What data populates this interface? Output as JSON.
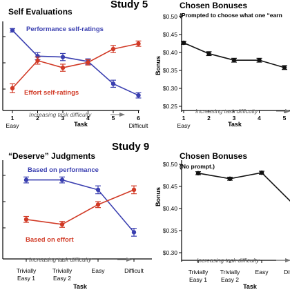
{
  "figure": {
    "study_titles": [
      "Study 5",
      "Study 9"
    ],
    "difficulty_annotation": "Increasing task difficulty"
  },
  "chart_data": [
    {
      "type": "line",
      "title": "Self Evaluations",
      "xlabel": "Task",
      "ylabel": "",
      "x_tick_labels": [
        [
          "1",
          "Easy"
        ],
        [
          "2"
        ],
        [
          "3"
        ],
        [
          "4"
        ],
        [
          "5"
        ],
        [
          "6",
          "Difficult"
        ]
      ],
      "y_tick_labels": [],
      "ylim": [
        0,
        1
      ],
      "series": [
        {
          "name": "Performance self-ratings",
          "color": "#3a3fb0",
          "values": [
            0.9,
            0.61,
            0.6,
            0.55,
            0.3,
            0.17
          ],
          "errors": [
            0.02,
            0.04,
            0.04,
            0.03,
            0.04,
            0.03
          ]
        },
        {
          "name": "Effort self-ratings",
          "color": "#d13a26",
          "values": [
            0.25,
            0.56,
            0.48,
            0.54,
            0.69,
            0.75
          ],
          "errors": [
            0.05,
            0.04,
            0.04,
            0.03,
            0.04,
            0.03
          ]
        }
      ],
      "difficulty_arrow": true
    },
    {
      "type": "line",
      "title": "Chosen Bonuses",
      "subtitle": "(Prompted to choose what one “earn",
      "xlabel": "Task",
      "ylabel": "Bonus",
      "x_tick_labels": [
        [
          "1",
          "Easy"
        ],
        [
          "2"
        ],
        [
          "3"
        ],
        [
          "4"
        ],
        [
          "5"
        ]
      ],
      "y_tick_labels": [
        "$0.50",
        "$0.45",
        "$0.40",
        "$0.35",
        "$0.30",
        "$0.25"
      ],
      "ylim": [
        0.25,
        0.5
      ],
      "series": [
        {
          "color": "#111111",
          "values": [
            0.425,
            0.397,
            0.38,
            0.38,
            0.361
          ],
          "errors": [
            0.004,
            0.005,
            0.005,
            0.005,
            0.005
          ]
        }
      ],
      "difficulty_arrow": true
    },
    {
      "type": "line",
      "title": "“Deserve” Judgments",
      "xlabel": "Task",
      "ylabel": "",
      "x_tick_labels": [
        [
          "Trivially",
          "Easy 1"
        ],
        [
          "Trivially",
          "Easy 2"
        ],
        [
          "Easy"
        ],
        [
          "Difficult"
        ]
      ],
      "y_tick_labels": [],
      "ylim": [
        0,
        1
      ],
      "series": [
        {
          "name": "Based on performance",
          "color": "#3a3fb0",
          "values": [
            0.8,
            0.8,
            0.7,
            0.27
          ],
          "errors": [
            0.03,
            0.03,
            0.04,
            0.04
          ]
        },
        {
          "name": "Based on effort",
          "color": "#d13a26",
          "values": [
            0.4,
            0.35,
            0.55,
            0.7
          ],
          "errors": [
            0.03,
            0.03,
            0.03,
            0.04
          ]
        }
      ],
      "difficulty_arrow": true
    },
    {
      "type": "line",
      "title": "Chosen Bonuses",
      "subtitle": "(No prompt.)",
      "xlabel": "Task",
      "ylabel": "Bonus",
      "x_tick_labels": [
        [
          "Trivially",
          "Easy 1"
        ],
        [
          "Trivially",
          "Easy 2"
        ],
        [
          "Easy"
        ],
        [
          "Difficult"
        ]
      ],
      "y_tick_labels": [
        "$0.50",
        "$0.45",
        "$0.40",
        "$0.35",
        "$0.30"
      ],
      "ylim": [
        0.3,
        0.5
      ],
      "series": [
        {
          "color": "#111111",
          "values": [
            0.474,
            0.463,
            0.475,
            0.412
          ],
          "errors": [
            0.003,
            0.003,
            0.003,
            0.004
          ]
        }
      ],
      "difficulty_arrow": true
    }
  ]
}
